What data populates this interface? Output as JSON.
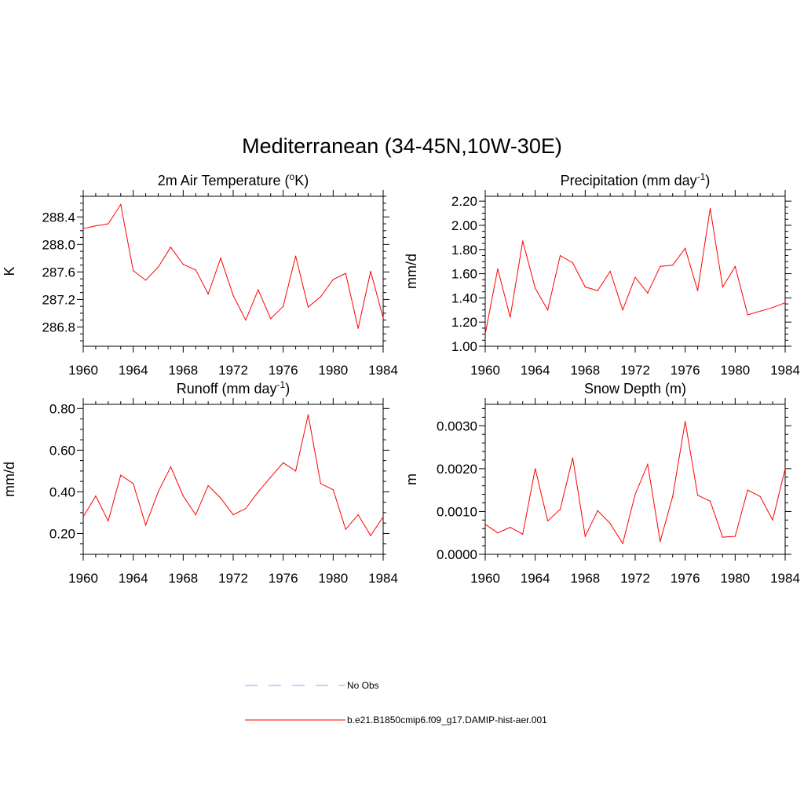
{
  "title": "Mediterranean (34-45N,10W-30E)",
  "colors": {
    "model": "#ff0000",
    "obs": "#9999ff"
  },
  "legend": {
    "obs_label": "No Obs",
    "model_label": "b.e21.B1850cmip6.f09_g17.DAMIP-hist-aer.001"
  },
  "chart_data": [
    {
      "type": "line",
      "title": "2m Air Temperature (oK)",
      "title_parts": {
        "before": "2m Air Temperature (",
        "sup": "o",
        "after": "K)"
      },
      "ylabel": "K",
      "xlim": [
        1960,
        1984
      ],
      "ylim": [
        286.52,
        288.7
      ],
      "x_ticks": [
        1960,
        1964,
        1968,
        1972,
        1976,
        1980,
        1984
      ],
      "x_tick_labels": [
        "1960",
        "1964",
        "1968",
        "1972",
        "1976",
        "1980",
        "1984"
      ],
      "y_ticks": [
        286.8,
        287.2,
        287.6,
        288.0,
        288.4
      ],
      "y_tick_labels": [
        "286.8",
        "287.2",
        "287.6",
        "288.0",
        "288.4"
      ],
      "y_minor_step": 0.1,
      "series": [
        {
          "x": [
            1960,
            1961,
            1962,
            1963,
            1964,
            1965,
            1966,
            1967,
            1968,
            1969,
            1970,
            1971,
            1972,
            1973,
            1974,
            1975,
            1976,
            1977,
            1978,
            1979,
            1980,
            1981,
            1982,
            1983,
            1984
          ],
          "values": [
            288.23,
            288.27,
            288.3,
            288.58,
            287.62,
            287.48,
            287.67,
            287.96,
            287.71,
            287.63,
            287.28,
            287.8,
            287.26,
            286.9,
            287.34,
            286.92,
            287.1,
            287.83,
            287.09,
            287.24,
            287.49,
            287.58,
            286.78,
            287.61,
            286.93
          ]
        }
      ]
    },
    {
      "type": "line",
      "title": "Precipitation (mm day-1)",
      "title_parts": {
        "before": "Precipitation (mm day",
        "sup": "-1",
        "after": ")"
      },
      "ylabel": "mm/d",
      "xlim": [
        1960,
        1984
      ],
      "ylim": [
        1.0,
        2.24
      ],
      "x_ticks": [
        1960,
        1964,
        1968,
        1972,
        1976,
        1980,
        1984
      ],
      "x_tick_labels": [
        "1960",
        "1964",
        "1968",
        "1972",
        "1976",
        "1980",
        "1984"
      ],
      "y_ticks": [
        1.0,
        1.2,
        1.4,
        1.6,
        1.8,
        2.0,
        2.2
      ],
      "y_tick_labels": [
        "1.00",
        "1.20",
        "1.40",
        "1.60",
        "1.80",
        "2.00",
        "2.20"
      ],
      "y_minor_step": 0.05,
      "series": [
        {
          "x": [
            1960,
            1961,
            1962,
            1963,
            1964,
            1965,
            1966,
            1967,
            1968,
            1969,
            1970,
            1971,
            1972,
            1973,
            1974,
            1975,
            1976,
            1977,
            1978,
            1979,
            1980,
            1981,
            1982,
            1983,
            1984
          ],
          "values": [
            1.1,
            1.64,
            1.24,
            1.87,
            1.48,
            1.3,
            1.75,
            1.69,
            1.49,
            1.46,
            1.62,
            1.3,
            1.57,
            1.44,
            1.66,
            1.67,
            1.81,
            1.46,
            2.14,
            1.49,
            1.66,
            1.26,
            1.29,
            1.32,
            1.36
          ]
        }
      ]
    },
    {
      "type": "line",
      "title": "Runoff (mm day-1)",
      "title_parts": {
        "before": "Runoff (mm day",
        "sup": "-1",
        "after": ")"
      },
      "ylabel": "mm/d",
      "xlim": [
        1960,
        1984
      ],
      "ylim": [
        0.1,
        0.82
      ],
      "x_ticks": [
        1960,
        1964,
        1968,
        1972,
        1976,
        1980,
        1984
      ],
      "x_tick_labels": [
        "1960",
        "1964",
        "1968",
        "1972",
        "1976",
        "1980",
        "1984"
      ],
      "y_ticks": [
        0.2,
        0.4,
        0.6,
        0.8
      ],
      "y_tick_labels": [
        "0.20",
        "0.40",
        "0.60",
        "0.80"
      ],
      "y_minor_step": 0.05,
      "series": [
        {
          "x": [
            1960,
            1961,
            1962,
            1963,
            1964,
            1965,
            1966,
            1967,
            1968,
            1969,
            1970,
            1971,
            1972,
            1973,
            1974,
            1975,
            1976,
            1977,
            1978,
            1979,
            1980,
            1981,
            1982,
            1983,
            1984
          ],
          "values": [
            0.28,
            0.38,
            0.26,
            0.48,
            0.44,
            0.24,
            0.4,
            0.52,
            0.38,
            0.29,
            0.43,
            0.37,
            0.29,
            0.32,
            0.4,
            0.47,
            0.54,
            0.5,
            0.77,
            0.44,
            0.41,
            0.22,
            0.29,
            0.19,
            0.28
          ]
        }
      ]
    },
    {
      "type": "line",
      "title": "Snow Depth (m)",
      "title_parts": {
        "before": "Snow Depth (m)",
        "sup": "",
        "after": ""
      },
      "ylabel": "m",
      "xlim": [
        1960,
        1984
      ],
      "ylim": [
        0.0,
        0.0035
      ],
      "x_ticks": [
        1960,
        1964,
        1968,
        1972,
        1976,
        1980,
        1984
      ],
      "x_tick_labels": [
        "1960",
        "1964",
        "1968",
        "1972",
        "1976",
        "1980",
        "1984"
      ],
      "y_ticks": [
        0.0,
        0.001,
        0.002,
        0.003
      ],
      "y_tick_labels": [
        "0.0000",
        "0.0010",
        "0.0020",
        "0.0030"
      ],
      "y_minor_step": 0.0002,
      "series": [
        {
          "x": [
            1960,
            1961,
            1962,
            1963,
            1964,
            1965,
            1966,
            1967,
            1968,
            1969,
            1970,
            1971,
            1972,
            1973,
            1974,
            1975,
            1976,
            1977,
            1978,
            1979,
            1980,
            1981,
            1982,
            1983,
            1984
          ],
          "values": [
            0.0007,
            0.0005,
            0.00063,
            0.00047,
            0.002,
            0.00078,
            0.00105,
            0.00225,
            0.00042,
            0.00102,
            0.00072,
            0.00025,
            0.0014,
            0.0021,
            0.0003,
            0.00135,
            0.0031,
            0.00138,
            0.00124,
            0.0004,
            0.00042,
            0.0015,
            0.00135,
            0.0008,
            0.002
          ]
        }
      ]
    }
  ]
}
